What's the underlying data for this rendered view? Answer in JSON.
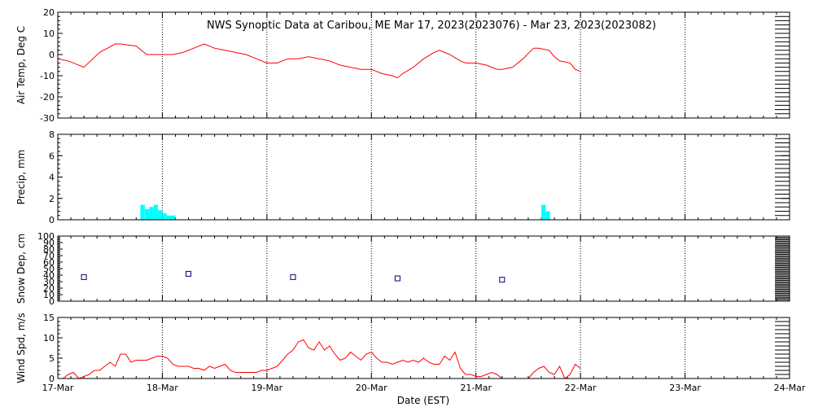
{
  "title": "NWS Synoptic Data at Caribou, ME   Mar 17, 2023(2023076) - Mar 23, 2023(2023082)",
  "xlabel": "Date (EST)",
  "x_tick_labels": [
    "17-Mar",
    "18-Mar",
    "19-Mar",
    "20-Mar",
    "21-Mar",
    "22-Mar",
    "23-Mar",
    "24-Mar"
  ],
  "colors": {
    "line": "#ff0000",
    "bar": "#00ffff",
    "marker": "#000080",
    "grid": "#000000"
  },
  "chart_data": [
    {
      "type": "line",
      "ylabel": "Air Temp, Deg C",
      "ylim": [
        -30,
        20
      ],
      "yticks": [
        -30,
        -20,
        -10,
        0,
        10,
        20
      ],
      "grid": "vertical-dotted",
      "x_unit": "days after 17-Mar 00:00 EST",
      "x": [
        0.0,
        0.1,
        0.25,
        0.4,
        0.55,
        0.6,
        0.75,
        0.85,
        0.9,
        0.95,
        1.0,
        1.1,
        1.2,
        1.3,
        1.4,
        1.5,
        1.6,
        1.7,
        1.8,
        1.9,
        2.0,
        2.1,
        2.2,
        2.3,
        2.4,
        2.5,
        2.6,
        2.7,
        2.8,
        2.9,
        3.0,
        3.1,
        3.2,
        3.25,
        3.3,
        3.4,
        3.5,
        3.6,
        3.65,
        3.75,
        3.85,
        3.9,
        4.0,
        4.1,
        4.2,
        4.25,
        4.35,
        4.45,
        4.55,
        4.6,
        4.7,
        4.75,
        4.8,
        4.9,
        4.95,
        5.0
      ],
      "y": [
        -2,
        -3,
        -6,
        1,
        5,
        5,
        4,
        0,
        0,
        0,
        0,
        0,
        1,
        3,
        5,
        3,
        2,
        1,
        0,
        -2,
        -4,
        -4,
        -2,
        -2,
        -1,
        -2,
        -3,
        -5,
        -6,
        -7,
        -7,
        -9,
        -10,
        -11,
        -9,
        -6,
        -2,
        1,
        2,
        0,
        -3,
        -4,
        -4,
        -5,
        -7,
        -7,
        -6,
        -2,
        3,
        3,
        2,
        -1,
        -3,
        -4,
        -7,
        -8
      ]
    },
    {
      "type": "bar",
      "ylabel": "Precip, mm",
      "ylim": [
        0,
        8
      ],
      "yticks": [
        0,
        2,
        4,
        6,
        8
      ],
      "grid": "vertical-dotted",
      "x_unit": "days after 17-Mar 00:00 EST",
      "bar_width": 0.041667,
      "x": [
        0.79,
        0.833,
        0.875,
        0.917,
        0.958,
        1.0,
        1.042,
        1.083,
        4.625,
        4.667
      ],
      "values": [
        1.4,
        1.0,
        1.2,
        1.4,
        0.9,
        0.6,
        0.4,
        0.4,
        1.4,
        0.8
      ]
    },
    {
      "type": "scatter",
      "ylabel": "Snow Dep, cm",
      "ylim": [
        0,
        100
      ],
      "yticks": [
        0,
        10,
        20,
        30,
        40,
        50,
        60,
        70,
        80,
        90,
        100
      ],
      "grid": "vertical-dotted",
      "x_unit": "days after 17-Mar 00:00 EST",
      "x": [
        0.25,
        1.25,
        2.25,
        3.25,
        4.25
      ],
      "y": [
        37,
        42,
        37,
        35,
        33
      ]
    },
    {
      "type": "line",
      "ylabel": "Wind Spd, m/s",
      "ylim": [
        0,
        15
      ],
      "yticks": [
        0,
        5,
        10,
        15
      ],
      "grid": "vertical-dotted",
      "x_unit": "days after 17-Mar 00:00 EST",
      "x": [
        0.0,
        0.05,
        0.1,
        0.15,
        0.2,
        0.25,
        0.3,
        0.35,
        0.4,
        0.45,
        0.5,
        0.55,
        0.6,
        0.65,
        0.7,
        0.75,
        0.8,
        0.85,
        0.9,
        0.95,
        1.0,
        1.05,
        1.1,
        1.15,
        1.2,
        1.25,
        1.3,
        1.35,
        1.4,
        1.45,
        1.5,
        1.55,
        1.6,
        1.65,
        1.7,
        1.75,
        1.8,
        1.85,
        1.9,
        1.95,
        2.0,
        2.05,
        2.1,
        2.15,
        2.2,
        2.25,
        2.3,
        2.35,
        2.4,
        2.45,
        2.5,
        2.55,
        2.6,
        2.65,
        2.7,
        2.75,
        2.8,
        2.85,
        2.9,
        2.95,
        3.0,
        3.05,
        3.1,
        3.15,
        3.2,
        3.25,
        3.3,
        3.35,
        3.4,
        3.45,
        3.5,
        3.55,
        3.6,
        3.65,
        3.7,
        3.75,
        3.8,
        3.85,
        3.9,
        3.95,
        4.0,
        4.05,
        4.1,
        4.15,
        4.2,
        4.25,
        4.3,
        4.35,
        4.4,
        4.45,
        4.5,
        4.55,
        4.6,
        4.65,
        4.7,
        4.75,
        4.8,
        4.85,
        4.9,
        4.95,
        5.0
      ],
      "y": [
        0,
        0,
        1,
        1.5,
        0,
        0.5,
        1,
        2,
        2,
        3,
        4,
        3,
        6,
        6,
        4,
        4.5,
        4.5,
        4.5,
        5,
        5.5,
        5.5,
        5,
        3.5,
        3,
        3,
        3,
        2.5,
        2.5,
        2,
        3,
        2.5,
        3,
        3.5,
        2,
        1.5,
        1.5,
        1.5,
        1.5,
        1.5,
        2,
        2,
        2.5,
        3,
        4.5,
        6,
        7,
        9,
        9.5,
        7.5,
        7,
        9,
        7,
        8,
        6,
        4.5,
        5,
        6.5,
        5.5,
        4.5,
        6,
        6.5,
        5,
        4,
        4,
        3.5,
        4,
        4.5,
        4,
        4.5,
        4,
        5,
        4,
        3.5,
        3.5,
        5.5,
        4.5,
        6.5,
        2.5,
        1,
        1,
        0.5,
        0.5,
        1,
        1.5,
        1,
        0,
        0,
        0,
        0,
        0,
        0,
        1.5,
        2.5,
        3,
        1.5,
        1,
        3,
        0,
        1,
        3.5,
        2.5
      ]
    }
  ]
}
